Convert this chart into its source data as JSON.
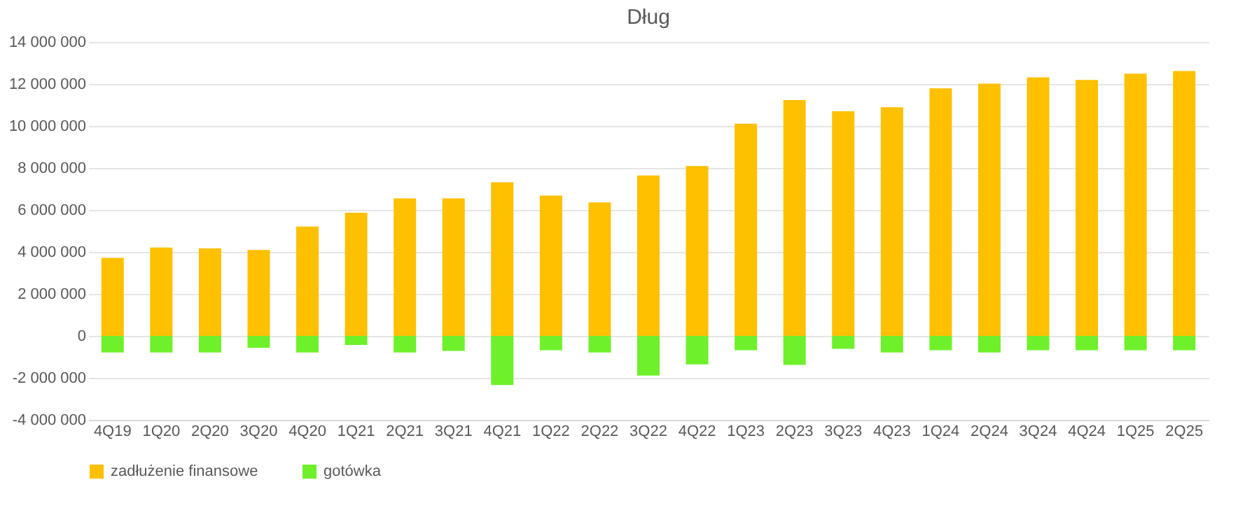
{
  "chart_data": {
    "type": "bar",
    "title": "Dług",
    "stacked": true,
    "categories": [
      "4Q19",
      "1Q20",
      "2Q20",
      "3Q20",
      "4Q20",
      "1Q21",
      "2Q21",
      "3Q21",
      "4Q21",
      "1Q22",
      "2Q22",
      "3Q22",
      "4Q22",
      "1Q23",
      "2Q23",
      "3Q23",
      "4Q23",
      "1Q24",
      "2Q24",
      "3Q24",
      "4Q24",
      "1Q25",
      "2Q25"
    ],
    "series": [
      {
        "name": "zadłużenie finansowe",
        "color": "#ffc000",
        "values": [
          3720000,
          4210000,
          4170000,
          4090000,
          5210000,
          5870000,
          6550000,
          6550000,
          7320000,
          6680000,
          6360000,
          7640000,
          8090000,
          10110000,
          11230000,
          10700000,
          10890000,
          11790000,
          12020000,
          12320000,
          12190000,
          12490000,
          12620000
        ]
      },
      {
        "name": "gotówka",
        "color": "#6ef02a",
        "values": [
          -790000,
          -790000,
          -790000,
          -570000,
          -790000,
          -430000,
          -790000,
          -720000,
          -2340000,
          -680000,
          -790000,
          -1890000,
          -1360000,
          -680000,
          -1380000,
          -620000,
          -790000,
          -680000,
          -790000,
          -680000,
          -680000,
          -680000,
          -680000
        ]
      }
    ],
    "ylim": [
      -4000000,
      14000000
    ],
    "yticks": [
      {
        "value": -4000000,
        "label": "-4 000 000"
      },
      {
        "value": -2000000,
        "label": "-2 000 000"
      },
      {
        "value": 0,
        "label": "0"
      },
      {
        "value": 2000000,
        "label": "2 000 000"
      },
      {
        "value": 4000000,
        "label": "4 000 000"
      },
      {
        "value": 6000000,
        "label": "6 000 000"
      },
      {
        "value": 8000000,
        "label": "8 000 000"
      },
      {
        "value": 10000000,
        "label": "10 000 000"
      },
      {
        "value": 12000000,
        "label": "12 000 000"
      },
      {
        "value": 14000000,
        "label": "14 000 000"
      }
    ],
    "grid": "y",
    "legend": "bottom"
  }
}
